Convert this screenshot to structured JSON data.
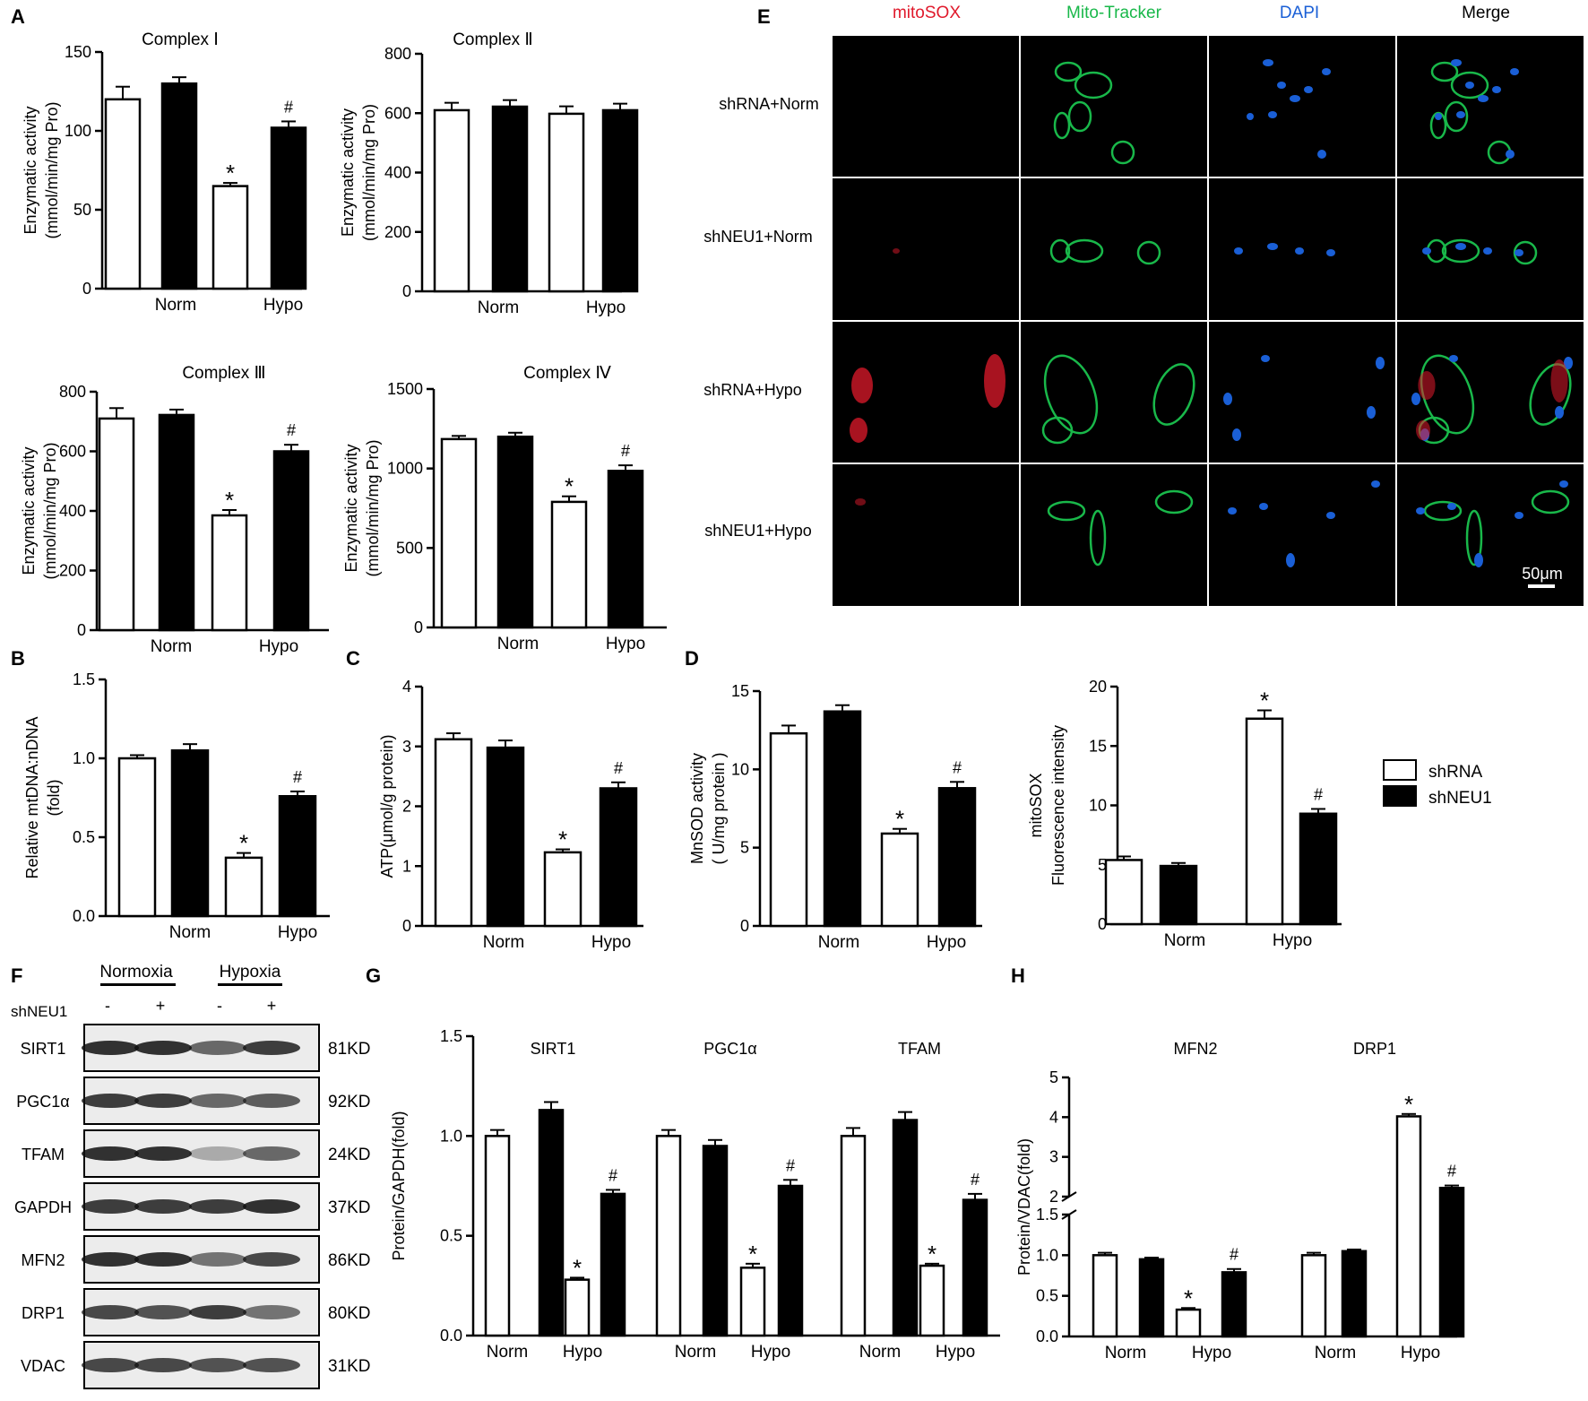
{
  "legend": {
    "items": [
      {
        "label": "shRNA",
        "color": "#ffffff"
      },
      {
        "label": "shNEU1",
        "color": "#000000"
      }
    ]
  },
  "colors": {
    "bar_a": "#ffffff",
    "bar_b": "#000000",
    "mitosox": "#e0192b",
    "mitotracker": "#19b84a",
    "dapi": "#1a5fd6",
    "merge": "#000000"
  },
  "panel_letters": {
    "A": "A",
    "B": "B",
    "C": "C",
    "D": "D",
    "E": "E",
    "F": "F",
    "G": "G",
    "H": "H"
  },
  "chart_data": [
    {
      "id": "complex1",
      "type": "bar",
      "title": "Complex Ⅰ",
      "ylabel": [
        "Enzymatic activity",
        "(mmol/min/mg Pro)"
      ],
      "ylim": [
        0,
        150
      ],
      "yticks": [
        "0",
        "50",
        "100",
        "150"
      ],
      "categories": [
        "Norm",
        "Hypo"
      ],
      "series": [
        {
          "name": "shRNA",
          "values": [
            120,
            65
          ],
          "errors": [
            8,
            2
          ]
        },
        {
          "name": "shNEU1",
          "values": [
            130,
            102
          ],
          "errors": [
            4,
            4
          ]
        }
      ],
      "annotations": [
        {
          "group": 1,
          "series": 0,
          "text": "*"
        },
        {
          "group": 1,
          "series": 1,
          "text": "#"
        }
      ]
    },
    {
      "id": "complex2",
      "type": "bar",
      "title": "Complex Ⅱ",
      "ylabel": [
        "Enzymatic activity",
        "(mmol/min/mg Pro)"
      ],
      "ylim": [
        0,
        800
      ],
      "yticks": [
        "0",
        "200",
        "400",
        "600",
        "800"
      ],
      "categories": [
        "Norm",
        "Hypo"
      ],
      "series": [
        {
          "name": "shRNA",
          "values": [
            610,
            598
          ],
          "errors": [
            25,
            25
          ]
        },
        {
          "name": "shNEU1",
          "values": [
            622,
            610
          ],
          "errors": [
            22,
            22
          ]
        }
      ],
      "annotations": []
    },
    {
      "id": "complex3",
      "type": "bar",
      "title": "Complex Ⅲ",
      "ylabel": [
        "Enzymatic activity",
        "(mmol/min/mg Pro)"
      ],
      "ylim": [
        0,
        800
      ],
      "yticks": [
        "0",
        "200",
        "400",
        "600",
        "800"
      ],
      "categories": [
        "Norm",
        "Hypo"
      ],
      "series": [
        {
          "name": "shRNA",
          "values": [
            710,
            385
          ],
          "errors": [
            35,
            18
          ]
        },
        {
          "name": "shNEU1",
          "values": [
            722,
            600
          ],
          "errors": [
            18,
            22
          ]
        }
      ],
      "annotations": [
        {
          "group": 1,
          "series": 0,
          "text": "*"
        },
        {
          "group": 1,
          "series": 1,
          "text": "#"
        }
      ]
    },
    {
      "id": "complex4",
      "type": "bar",
      "title": "Complex Ⅳ",
      "ylabel": [
        "Enzymatic activity",
        "(mmol/min/mg Pro)"
      ],
      "ylim": [
        0,
        1500
      ],
      "yticks": [
        "0",
        "500",
        "1000",
        "1500"
      ],
      "categories": [
        "Norm",
        "Hypo"
      ],
      "series": [
        {
          "name": "shRNA",
          "values": [
            1185,
            790
          ],
          "errors": [
            20,
            35
          ]
        },
        {
          "name": "shNEU1",
          "values": [
            1200,
            985
          ],
          "errors": [
            25,
            35
          ]
        }
      ],
      "annotations": [
        {
          "group": 1,
          "series": 0,
          "text": "*"
        },
        {
          "group": 1,
          "series": 1,
          "text": "#"
        }
      ]
    },
    {
      "id": "mtdna",
      "type": "bar",
      "title": "",
      "ylabel": [
        "Relative mtDNA:nDNA",
        "(fold)"
      ],
      "ylim": [
        0,
        1.5
      ],
      "yticks": [
        "0.0",
        "0.5",
        "1.0",
        "1.5"
      ],
      "categories": [
        "Norm",
        "Hypo"
      ],
      "series": [
        {
          "name": "shRNA",
          "values": [
            1.0,
            0.37
          ],
          "errors": [
            0.02,
            0.03
          ]
        },
        {
          "name": "shNEU1",
          "values": [
            1.05,
            0.76
          ],
          "errors": [
            0.04,
            0.03
          ]
        }
      ],
      "annotations": [
        {
          "group": 1,
          "series": 0,
          "text": "*"
        },
        {
          "group": 1,
          "series": 1,
          "text": "#"
        }
      ]
    },
    {
      "id": "atp",
      "type": "bar",
      "title": "",
      "ylabel": [
        "ATP(μmol/g protein)"
      ],
      "ylim": [
        0,
        4
      ],
      "yticks": [
        "0",
        "1",
        "2",
        "3",
        "4"
      ],
      "categories": [
        "Norm",
        "Hypo"
      ],
      "series": [
        {
          "name": "shRNA",
          "values": [
            3.12,
            1.23
          ],
          "errors": [
            0.1,
            0.05
          ]
        },
        {
          "name": "shNEU1",
          "values": [
            2.98,
            2.3
          ],
          "errors": [
            0.12,
            0.1
          ]
        }
      ],
      "annotations": [
        {
          "group": 1,
          "series": 0,
          "text": "*"
        },
        {
          "group": 1,
          "series": 1,
          "text": "#"
        }
      ]
    },
    {
      "id": "mnsod",
      "type": "bar",
      "title": "",
      "ylabel": [
        "MnSOD activity",
        "( U/mg protein )"
      ],
      "ylim": [
        0,
        15
      ],
      "yticks": [
        "0",
        "5",
        "10",
        "15"
      ],
      "categories": [
        "Norm",
        "Hypo"
      ],
      "series": [
        {
          "name": "shRNA",
          "values": [
            12.3,
            5.9
          ],
          "errors": [
            0.5,
            0.3
          ]
        },
        {
          "name": "shNEU1",
          "values": [
            13.7,
            8.8
          ],
          "errors": [
            0.4,
            0.4
          ]
        }
      ],
      "annotations": [
        {
          "group": 1,
          "series": 0,
          "text": "*"
        },
        {
          "group": 1,
          "series": 1,
          "text": "#"
        }
      ]
    },
    {
      "id": "mitosox",
      "type": "bar",
      "title": "",
      "ylabel": [
        "mitoSOX",
        "Fluorescence intensity"
      ],
      "ylim": [
        0,
        20
      ],
      "yticks": [
        "0",
        "5",
        "10",
        "15",
        "20"
      ],
      "categories": [
        "Norm",
        "Hypo"
      ],
      "series": [
        {
          "name": "shRNA",
          "values": [
            5.4,
            17.3
          ],
          "errors": [
            0.3,
            0.7
          ]
        },
        {
          "name": "shNEU1",
          "values": [
            4.9,
            9.3
          ],
          "errors": [
            0.25,
            0.4
          ]
        }
      ],
      "annotations": [
        {
          "group": 1,
          "series": 0,
          "text": "*"
        },
        {
          "group": 1,
          "series": 1,
          "text": "#"
        }
      ]
    },
    {
      "id": "panelG",
      "type": "bar",
      "title": "",
      "ylabel": [
        "Protein/GAPDH(fold)"
      ],
      "ylim": [
        0,
        1.5
      ],
      "yticks": [
        "0.0",
        "0.5",
        "1.0",
        "1.5"
      ],
      "groups": [
        {
          "label": "SIRT1"
        },
        {
          "label": "PGC1α"
        },
        {
          "label": "TFAM"
        }
      ],
      "categories": [
        "Norm",
        "Hypo",
        "Norm",
        "Hypo",
        "Norm",
        "Hypo"
      ],
      "series": [
        {
          "name": "shRNA",
          "values": [
            1.0,
            0.28,
            1.0,
            0.34,
            1.0,
            0.35
          ],
          "errors": [
            0.03,
            0.01,
            0.03,
            0.02,
            0.04,
            0.01
          ]
        },
        {
          "name": "shNEU1",
          "values": [
            1.13,
            0.71,
            0.95,
            0.75,
            1.08,
            0.68
          ],
          "errors": [
            0.04,
            0.02,
            0.03,
            0.03,
            0.04,
            0.03
          ]
        }
      ],
      "annotations": [
        {
          "group": 1,
          "series": 0,
          "text": "*"
        },
        {
          "group": 1,
          "series": 1,
          "text": "#"
        },
        {
          "group": 3,
          "series": 0,
          "text": "*"
        },
        {
          "group": 3,
          "series": 1,
          "text": "#"
        },
        {
          "group": 5,
          "series": 0,
          "text": "*"
        },
        {
          "group": 5,
          "series": 1,
          "text": "#"
        }
      ]
    },
    {
      "id": "panelH",
      "type": "bar",
      "title": "",
      "ylabel": [
        "Protein/VDAC(fold)"
      ],
      "ylim": [
        0,
        5
      ],
      "ybreak": [
        1.5,
        2
      ],
      "yticks": [
        "0.0",
        "0.5",
        "1.0",
        "1.5",
        "2",
        "3",
        "4",
        "5"
      ],
      "groups": [
        {
          "label": "MFN2"
        },
        {
          "label": "DRP1"
        }
      ],
      "categories": [
        "Norm",
        "Hypo",
        "Norm",
        "Hypo"
      ],
      "series": [
        {
          "name": "shRNA",
          "values": [
            1.0,
            0.33,
            1.0,
            4.02
          ],
          "errors": [
            0.03,
            0.02,
            0.03,
            0.06
          ]
        },
        {
          "name": "shNEU1",
          "values": [
            0.95,
            0.79,
            1.05,
            2.22
          ],
          "errors": [
            0.02,
            0.04,
            0.02,
            0.06
          ]
        }
      ],
      "annotations": [
        {
          "group": 1,
          "series": 0,
          "text": "*"
        },
        {
          "group": 1,
          "series": 1,
          "text": "#"
        },
        {
          "group": 3,
          "series": 0,
          "text": "*"
        },
        {
          "group": 3,
          "series": 1,
          "text": "#"
        }
      ]
    }
  ],
  "microscopy": {
    "columns": [
      {
        "label": "mitoSOX",
        "color": "#e0192b"
      },
      {
        "label": "Mito-Tracker",
        "color": "#19b84a"
      },
      {
        "label": "DAPI",
        "color": "#1a5fd6"
      },
      {
        "label": "Merge",
        "color": "#000000"
      }
    ],
    "rows": [
      "shRNA+Norm",
      "shNEU1+Norm",
      "shRNA+Hypo",
      "shNEU1+Hypo"
    ],
    "scale_bar": "50μm"
  },
  "western_blot": {
    "conditions": [
      "Normoxia",
      "Hypoxia"
    ],
    "treatment_label": "shNEU1",
    "lane_signs": [
      "-",
      "+",
      "-",
      "+"
    ],
    "proteins": [
      {
        "name": "SIRT1",
        "size": "81KD"
      },
      {
        "name": "PGC1α",
        "size": "92KD"
      },
      {
        "name": "TFAM",
        "size": "24KD"
      },
      {
        "name": "GAPDH",
        "size": "37KD"
      },
      {
        "name": "MFN2",
        "size": "86KD"
      },
      {
        "name": "DRP1",
        "size": "80KD"
      },
      {
        "name": "VDAC",
        "size": "31KD"
      }
    ]
  }
}
